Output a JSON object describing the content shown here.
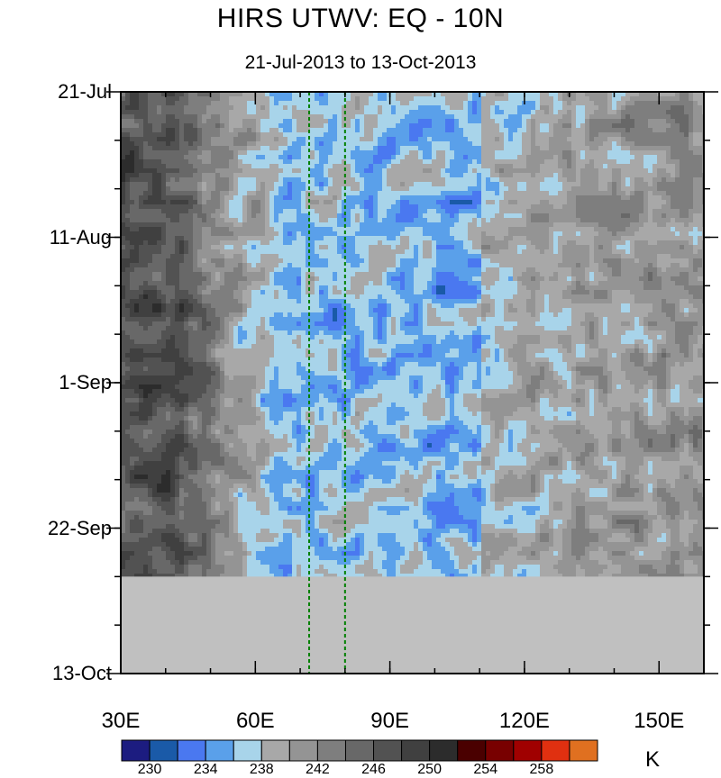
{
  "chart_data": {
    "type": "heatmap",
    "title": "HIRS UTWV: EQ - 10N",
    "subtitle": "21-Jul-2013 to 13-Oct-2013",
    "x_axis": {
      "range": [
        "30E",
        "160E"
      ],
      "ticks": [
        "30E",
        "60E",
        "90E",
        "120E",
        "150E"
      ]
    },
    "y_axis": {
      "range": [
        "21-Jul-2013",
        "13-Oct-2013"
      ],
      "ticks": [
        "21-Jul",
        "11-Aug",
        "1-Sep",
        "22-Sep",
        "13-Oct"
      ]
    },
    "data_end": "29-Sep-2013",
    "reference_lines": [
      "72E",
      "80E"
    ],
    "colorbar": {
      "unit": "K",
      "levels": [
        228,
        230,
        232,
        234,
        236,
        238,
        240,
        242,
        244,
        246,
        248,
        250,
        252,
        254,
        256,
        258,
        260
      ],
      "labels": [
        "230",
        "234",
        "238",
        "242",
        "246",
        "250",
        "254",
        "258"
      ],
      "colors": [
        "#1c1c80",
        "#1a5aa8",
        "#4a78f0",
        "#5aa0ea",
        "#a8d4ea",
        "#a8a8a8",
        "#949494",
        "#7e7e7e",
        "#686868",
        "#525252",
        "#404040",
        "#2c2c2c",
        "#4a0000",
        "#780000",
        "#a00000",
        "#e03010",
        "#e07020"
      ]
    },
    "missing_color": "#c0c0c0"
  }
}
